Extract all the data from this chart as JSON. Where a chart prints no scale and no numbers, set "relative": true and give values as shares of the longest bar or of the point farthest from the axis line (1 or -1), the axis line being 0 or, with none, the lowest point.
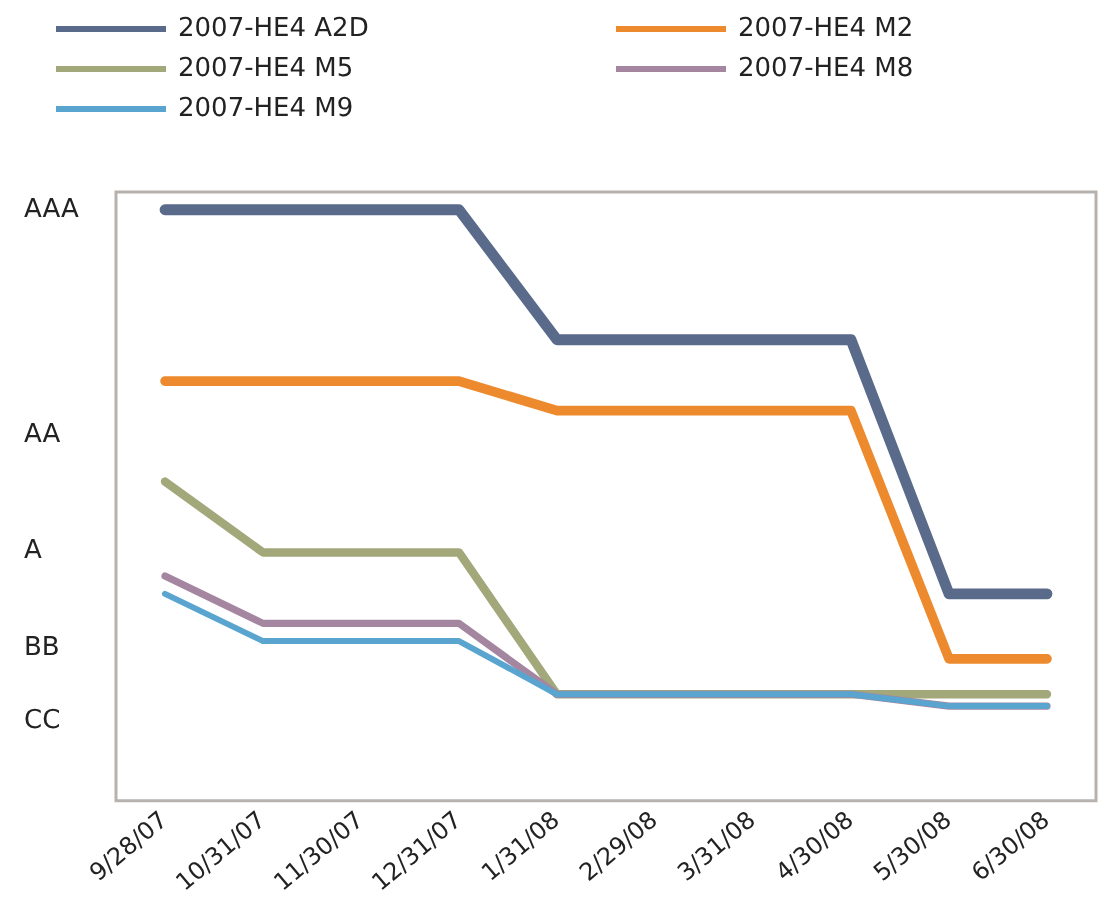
{
  "chart_data": {
    "type": "line",
    "relative": true,
    "categories": [
      "9/28/07",
      "10/31/07",
      "11/30/07",
      "12/31/07",
      "1/31/08",
      "2/29/08",
      "3/31/08",
      "4/30/08",
      "5/30/08",
      "6/30/08"
    ],
    "series": [
      {
        "name": "2007-HE4 A2D",
        "color": "#5a6a8a",
        "values": [
          1,
          1,
          1,
          1,
          0.78,
          0.78,
          0.78,
          0.78,
          0.35,
          0.35
        ]
      },
      {
        "name": "2007-HE4 M2",
        "color": "#ee8a2e",
        "values": [
          0.71,
          0.71,
          0.71,
          0.71,
          0.66,
          0.66,
          0.66,
          0.66,
          0.24,
          0.24
        ]
      },
      {
        "name": "2007-HE4 M5",
        "color": "#a2a87a",
        "values": [
          0.54,
          0.42,
          0.42,
          0.42,
          0.18,
          0.18,
          0.18,
          0.18,
          0.18,
          0.18
        ]
      },
      {
        "name": "2007-HE4 M8",
        "color": "#a586a0",
        "values": [
          0.38,
          0.3,
          0.3,
          0.3,
          0.18,
          0.18,
          0.18,
          0.18,
          0.16,
          0.16
        ]
      },
      {
        "name": "2007-HE4 M9",
        "color": "#5aa5cf",
        "values": [
          0.35,
          0.27,
          0.27,
          0.27,
          0.18,
          0.18,
          0.18,
          0.18,
          0.16,
          0.16
        ]
      }
    ],
    "annotations": [
      "AAA",
      "AA",
      "A",
      "BB",
      "CC"
    ],
    "grid": false,
    "legend": "top",
    "marker": "none",
    "line_style": "solid"
  }
}
